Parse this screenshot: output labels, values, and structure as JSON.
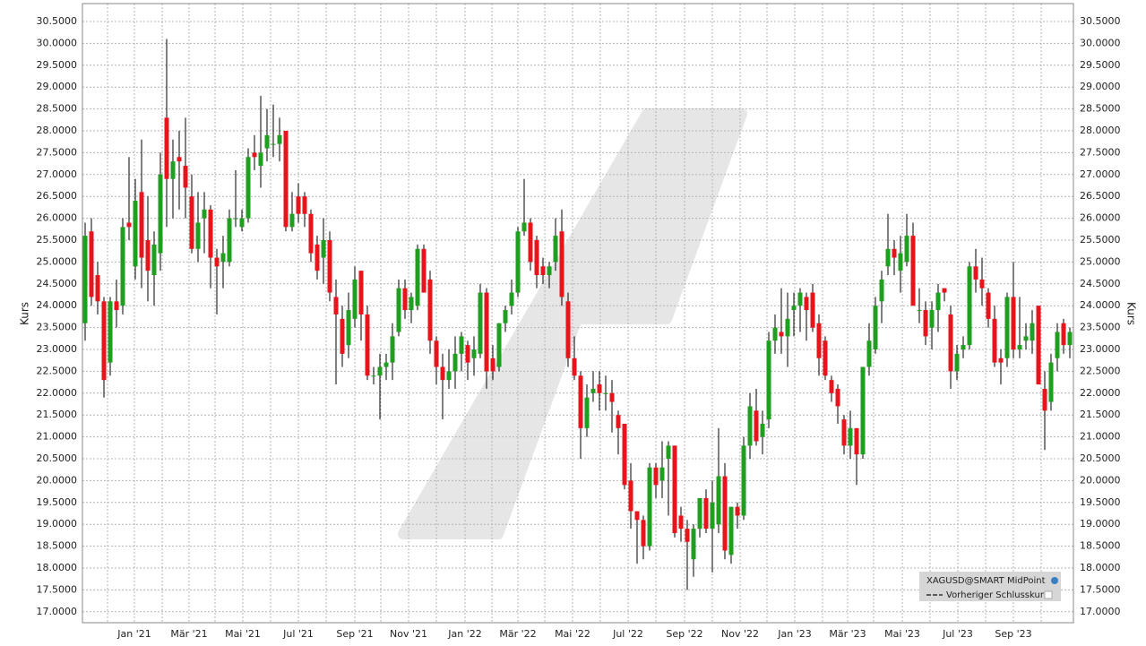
{
  "chart_data": {
    "type": "candlestick",
    "ylabel": "Kurs",
    "up_color": "#1f9e1f",
    "down_color": "#e8141c",
    "wick_color": "#000000",
    "grid": true,
    "legend": {
      "entries": [
        "XAGUSD@SMART MidPoint",
        "Vorheriger Schlusskurs"
      ],
      "corner": "lower right"
    },
    "ylim": [
      16.75,
      30.91
    ],
    "yticks": [
      {
        "value": 17.0,
        "label": "17.0000"
      },
      {
        "value": 17.5,
        "label": "17.5000"
      },
      {
        "value": 18.0,
        "label": "18.0000"
      },
      {
        "value": 18.5,
        "label": "18.5000"
      },
      {
        "value": 19.0,
        "label": "19.0000"
      },
      {
        "value": 19.5,
        "label": "19.5000"
      },
      {
        "value": 20.0,
        "label": "20.0000"
      },
      {
        "value": 20.5,
        "label": "20.5000"
      },
      {
        "value": 21.0,
        "label": "21.0000"
      },
      {
        "value": 21.5,
        "label": "21.5000"
      },
      {
        "value": 22.0,
        "label": "22.0000"
      },
      {
        "value": 22.5,
        "label": "22.5000"
      },
      {
        "value": 23.0,
        "label": "23.0000"
      },
      {
        "value": 23.5,
        "label": "23.5000"
      },
      {
        "value": 24.0,
        "label": "24.0000"
      },
      {
        "value": 24.5,
        "label": "24.5000"
      },
      {
        "value": 25.0,
        "label": "25.0000"
      },
      {
        "value": 25.5,
        "label": "25.5000"
      },
      {
        "value": 26.0,
        "label": "26.0000"
      },
      {
        "value": 26.5,
        "label": "26.5000"
      },
      {
        "value": 27.0,
        "label": "27.0000"
      },
      {
        "value": 27.5,
        "label": "27.5000"
      },
      {
        "value": 28.0,
        "label": "28.0000"
      },
      {
        "value": 28.5,
        "label": "28.5000"
      },
      {
        "value": 29.0,
        "label": "29.0000"
      },
      {
        "value": 29.5,
        "label": "29.5000"
      },
      {
        "value": 30.0,
        "label": "30.0000"
      },
      {
        "value": 30.5,
        "label": "30.5000"
      }
    ],
    "xlim": [
      -0.43,
      157.57
    ],
    "xticks": [
      {
        "value": 7.86,
        "label": "Jan '21"
      },
      {
        "value": 16.57,
        "label": "Mär '21"
      },
      {
        "value": 25.14,
        "label": "Mai '21"
      },
      {
        "value": 34.0,
        "label": "Jul '21"
      },
      {
        "value": 43.0,
        "label": "Sep '21"
      },
      {
        "value": 51.57,
        "label": "Nov '21"
      },
      {
        "value": 60.57,
        "label": "Jan '22"
      },
      {
        "value": 69.0,
        "label": "Mär '22"
      },
      {
        "value": 77.71,
        "label": "Mai '22"
      },
      {
        "value": 86.57,
        "label": "Jul '22"
      },
      {
        "value": 95.57,
        "label": "Sep '22"
      },
      {
        "value": 104.43,
        "label": "Nov '22"
      },
      {
        "value": 113.14,
        "label": "Jan '23"
      },
      {
        "value": 121.57,
        "label": "Mär '23"
      },
      {
        "value": 130.29,
        "label": "Mai '23"
      },
      {
        "value": 139.14,
        "label": "Jul '23"
      },
      {
        "value": 148.0,
        "label": "Sep '23"
      }
    ],
    "xminorticks": [
      3.57,
      12.29,
      20.71,
      29.57,
      38.43,
      47.14,
      56.0,
      64.86,
      73.29,
      82.14,
      91.0,
      100.0,
      108.71,
      117.57,
      125.71,
      134.71,
      143.57,
      152.43
    ],
    "candles": [
      [
        23.6,
        25.9,
        23.2,
        25.6
      ],
      [
        25.7,
        26.0,
        24.0,
        24.2
      ],
      [
        24.7,
        25.0,
        23.8,
        24.1
      ],
      [
        24.1,
        24.2,
        21.9,
        22.3
      ],
      [
        22.7,
        24.2,
        22.4,
        24.1
      ],
      [
        24.1,
        24.6,
        23.5,
        23.9
      ],
      [
        24.0,
        26.0,
        23.8,
        25.8
      ],
      [
        25.9,
        27.4,
        25.5,
        25.8
      ],
      [
        24.9,
        26.9,
        24.6,
        26.4
      ],
      [
        26.6,
        27.8,
        24.4,
        25.1
      ],
      [
        25.5,
        26.5,
        24.1,
        24.8
      ],
      [
        24.7,
        25.7,
        24.0,
        25.4
      ],
      [
        25.2,
        27.5,
        24.8,
        27.0
      ],
      [
        28.3,
        30.1,
        25.8,
        26.9
      ],
      [
        26.9,
        27.8,
        26.0,
        27.3
      ],
      [
        27.4,
        28.0,
        26.2,
        27.3
      ],
      [
        27.2,
        28.3,
        26.0,
        26.7
      ],
      [
        26.5,
        27.0,
        25.2,
        25.3
      ],
      [
        25.3,
        26.6,
        25.0,
        25.9
      ],
      [
        26.0,
        26.6,
        25.2,
        26.2
      ],
      [
        26.2,
        26.3,
        24.4,
        25.1
      ],
      [
        25.1,
        25.3,
        23.8,
        24.9
      ],
      [
        25.0,
        25.6,
        24.4,
        25.2
      ],
      [
        25.0,
        26.2,
        24.9,
        26.0
      ],
      [
        26.0,
        27.1,
        25.8,
        26.0
      ],
      [
        25.8,
        26.2,
        25.7,
        26.0
      ],
      [
        26.0,
        27.6,
        25.9,
        27.4
      ],
      [
        27.5,
        27.9,
        27.1,
        27.4
      ],
      [
        27.2,
        28.8,
        26.7,
        27.5
      ],
      [
        27.6,
        28.5,
        27.3,
        27.9
      ],
      [
        27.7,
        28.6,
        27.4,
        27.7
      ],
      [
        27.7,
        28.3,
        27.3,
        27.9
      ],
      [
        28.0,
        28.0,
        25.7,
        25.8
      ],
      [
        25.8,
        26.6,
        25.7,
        26.1
      ],
      [
        26.5,
        26.8,
        25.9,
        26.1
      ],
      [
        26.5,
        26.6,
        25.8,
        26.1
      ],
      [
        26.1,
        26.2,
        25.0,
        25.2
      ],
      [
        25.4,
        25.6,
        24.6,
        24.8
      ],
      [
        25.1,
        26.0,
        24.5,
        25.5
      ],
      [
        25.5,
        25.7,
        24.1,
        24.3
      ],
      [
        24.2,
        24.6,
        22.2,
        23.8
      ],
      [
        23.7,
        24.0,
        22.6,
        22.9
      ],
      [
        23.1,
        24.3,
        22.8,
        23.9
      ],
      [
        23.7,
        24.9,
        23.5,
        24.6
      ],
      [
        24.8,
        24.8,
        23.2,
        23.8
      ],
      [
        23.8,
        24.0,
        22.3,
        22.4
      ],
      [
        22.4,
        22.6,
        22.2,
        22.4
      ],
      [
        22.4,
        22.9,
        21.4,
        22.6
      ],
      [
        22.6,
        22.9,
        22.3,
        22.7
      ],
      [
        22.7,
        23.6,
        22.3,
        23.3
      ],
      [
        23.4,
        24.6,
        23.3,
        24.4
      ],
      [
        24.4,
        24.6,
        23.7,
        23.9
      ],
      [
        23.9,
        24.3,
        23.6,
        24.2
      ],
      [
        24.0,
        25.4,
        23.9,
        25.3
      ],
      [
        25.3,
        25.4,
        24.3,
        24.3
      ],
      [
        24.6,
        24.8,
        22.9,
        23.2
      ],
      [
        23.2,
        23.3,
        22.2,
        22.6
      ],
      [
        22.6,
        22.9,
        21.4,
        22.3
      ],
      [
        22.3,
        23.0,
        22.1,
        22.5
      ],
      [
        22.5,
        23.3,
        22.1,
        22.9
      ],
      [
        22.9,
        23.4,
        22.5,
        23.3
      ],
      [
        23.1,
        23.2,
        22.3,
        22.7
      ],
      [
        22.8,
        23.3,
        22.4,
        23.0
      ],
      [
        22.9,
        24.5,
        22.8,
        24.3
      ],
      [
        24.3,
        24.4,
        22.1,
        22.5
      ],
      [
        22.8,
        23.1,
        22.3,
        22.5
      ],
      [
        22.6,
        23.6,
        22.5,
        23.6
      ],
      [
        23.6,
        24.0,
        23.4,
        23.9
      ],
      [
        24.0,
        24.6,
        23.8,
        24.3
      ],
      [
        24.3,
        25.8,
        24.2,
        25.7
      ],
      [
        25.7,
        26.9,
        25.6,
        25.9
      ],
      [
        25.9,
        26.0,
        24.8,
        25.0
      ],
      [
        25.5,
        25.6,
        24.4,
        24.7
      ],
      [
        24.9,
        25.1,
        24.5,
        24.7
      ],
      [
        24.7,
        25.0,
        24.4,
        24.9
      ],
      [
        25.0,
        26.0,
        24.8,
        25.6
      ],
      [
        25.7,
        26.2,
        24.0,
        24.2
      ],
      [
        24.1,
        24.3,
        22.6,
        22.8
      ],
      [
        22.8,
        23.3,
        22.3,
        22.4
      ],
      [
        22.4,
        22.5,
        20.5,
        21.2
      ],
      [
        21.2,
        22.2,
        21.0,
        21.9
      ],
      [
        22.0,
        22.5,
        21.8,
        22.1
      ],
      [
        22.2,
        22.5,
        21.6,
        22.0
      ],
      [
        22.0,
        22.4,
        21.6,
        22.0
      ],
      [
        22.0,
        22.3,
        21.1,
        21.8
      ],
      [
        21.5,
        21.6,
        20.6,
        21.2
      ],
      [
        21.3,
        21.3,
        19.8,
        19.9
      ],
      [
        20.0,
        20.4,
        18.9,
        19.3
      ],
      [
        19.3,
        19.3,
        18.1,
        19.1
      ],
      [
        19.1,
        19.2,
        18.2,
        18.5
      ],
      [
        18.5,
        20.4,
        18.4,
        20.3
      ],
      [
        20.3,
        20.4,
        19.6,
        19.9
      ],
      [
        20.0,
        20.9,
        19.6,
        20.3
      ],
      [
        20.5,
        20.9,
        19.2,
        20.8
      ],
      [
        20.8,
        20.8,
        18.7,
        18.8
      ],
      [
        19.2,
        19.4,
        18.6,
        18.9
      ],
      [
        18.9,
        19.1,
        17.5,
        18.6
      ],
      [
        18.2,
        19.0,
        17.8,
        18.9
      ],
      [
        18.9,
        19.6,
        18.7,
        19.6
      ],
      [
        19.6,
        19.8,
        18.8,
        18.9
      ],
      [
        18.9,
        20.0,
        17.9,
        19.5
      ],
      [
        19.0,
        21.2,
        18.8,
        20.1
      ],
      [
        20.1,
        20.4,
        18.2,
        18.4
      ],
      [
        18.3,
        19.4,
        18.1,
        19.4
      ],
      [
        19.4,
        19.5,
        18.9,
        19.2
      ],
      [
        19.2,
        21.0,
        19.1,
        20.8
      ],
      [
        20.8,
        22.0,
        20.5,
        21.7
      ],
      [
        21.6,
        22.1,
        20.8,
        20.9
      ],
      [
        21.0,
        21.6,
        20.6,
        21.3
      ],
      [
        21.4,
        23.4,
        21.2,
        23.2
      ],
      [
        23.2,
        23.8,
        22.9,
        23.5
      ],
      [
        23.4,
        24.4,
        22.9,
        23.3
      ],
      [
        23.3,
        24.3,
        22.6,
        23.7
      ],
      [
        23.9,
        24.3,
        23.3,
        24.0
      ],
      [
        24.0,
        24.4,
        23.4,
        24.3
      ],
      [
        24.2,
        24.3,
        23.2,
        23.9
      ],
      [
        24.3,
        24.5,
        23.4,
        23.5
      ],
      [
        23.6,
        23.8,
        22.4,
        22.8
      ],
      [
        23.2,
        23.3,
        22.3,
        22.4
      ],
      [
        22.3,
        22.4,
        21.8,
        22.0
      ],
      [
        22.1,
        22.2,
        21.3,
        21.7
      ],
      [
        21.4,
        21.5,
        20.6,
        20.8
      ],
      [
        20.8,
        21.6,
        20.5,
        21.2
      ],
      [
        21.2,
        21.2,
        19.9,
        20.6
      ],
      [
        20.6,
        22.6,
        20.5,
        22.6
      ],
      [
        22.6,
        23.6,
        22.4,
        23.2
      ],
      [
        23.0,
        24.2,
        22.9,
        24.0
      ],
      [
        24.1,
        24.8,
        23.6,
        24.6
      ],
      [
        24.9,
        26.1,
        24.7,
        25.3
      ],
      [
        25.3,
        25.5,
        24.7,
        25.1
      ],
      [
        24.8,
        25.6,
        24.3,
        25.2
      ],
      [
        25.0,
        26.1,
        24.9,
        25.6
      ],
      [
        25.6,
        25.9,
        24.0,
        24.0
      ],
      [
        23.9,
        24.4,
        23.6,
        23.9
      ],
      [
        23.9,
        24.1,
        23.1,
        23.3
      ],
      [
        23.5,
        24.1,
        23.0,
        23.9
      ],
      [
        23.9,
        24.5,
        23.4,
        24.3
      ],
      [
        24.4,
        24.4,
        24.1,
        24.3
      ],
      [
        23.8,
        24.0,
        22.1,
        22.5
      ],
      [
        22.5,
        23.1,
        22.3,
        22.9
      ],
      [
        23.0,
        23.3,
        22.8,
        23.1
      ],
      [
        23.1,
        25.0,
        23.0,
        24.9
      ],
      [
        24.9,
        25.3,
        24.3,
        24.6
      ],
      [
        24.6,
        25.1,
        24.0,
        24.4
      ],
      [
        24.3,
        24.4,
        23.5,
        23.7
      ],
      [
        23.7,
        24.0,
        22.6,
        22.7
      ],
      [
        22.8,
        23.0,
        22.2,
        22.7
      ],
      [
        22.8,
        24.3,
        22.6,
        24.2
      ],
      [
        24.2,
        25.0,
        22.8,
        23.0
      ],
      [
        23.0,
        24.2,
        22.8,
        23.1
      ],
      [
        23.2,
        23.6,
        23.0,
        23.3
      ],
      [
        23.2,
        23.9,
        22.9,
        23.6
      ],
      [
        24.0,
        24.0,
        22.2,
        22.2
      ],
      [
        22.1,
        22.5,
        20.7,
        21.6
      ],
      [
        21.8,
        22.9,
        21.6,
        22.7
      ],
      [
        22.8,
        23.6,
        22.5,
        23.4
      ],
      [
        23.6,
        23.7,
        22.9,
        23.1
      ],
      [
        23.1,
        23.5,
        22.8,
        23.4
      ]
    ]
  }
}
